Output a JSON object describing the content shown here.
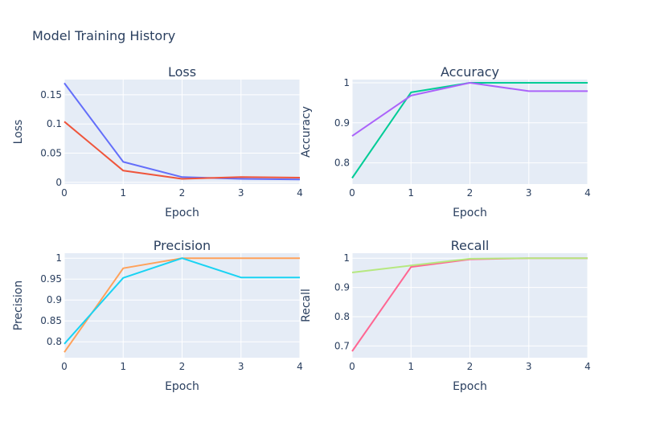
{
  "title": "Model Training History",
  "colors": {
    "plot_bg": "#E5ECF6",
    "grid": "#ffffff",
    "text": "#2a3f5f"
  },
  "chart_data": [
    {
      "type": "line",
      "title": "Loss",
      "xlabel": "Epoch",
      "ylabel": "Loss",
      "x": [
        0,
        1,
        2,
        3,
        4
      ],
      "xlim": [
        0,
        4
      ],
      "ylim": [
        -0.003,
        0.176
      ],
      "xticks": [
        0,
        1,
        2,
        3,
        4
      ],
      "yticks": [
        0,
        0.05,
        0.1,
        0.15
      ],
      "ytick_labels": [
        "0",
        "0.05",
        "0.1",
        "0.15"
      ],
      "grid": true,
      "series": [
        {
          "color": "#636EFA",
          "values": [
            0.17,
            0.035,
            0.009,
            0.006,
            0.005
          ]
        },
        {
          "color": "#EF553B",
          "values": [
            0.104,
            0.02,
            0.006,
            0.009,
            0.008
          ]
        }
      ]
    },
    {
      "type": "line",
      "title": "Accuracy",
      "xlabel": "Epoch",
      "ylabel": "Accuracy",
      "x": [
        0,
        1,
        2,
        3,
        4
      ],
      "xlim": [
        0,
        4
      ],
      "ylim": [
        0.747,
        1.008
      ],
      "xticks": [
        0,
        1,
        2,
        3,
        4
      ],
      "yticks": [
        0.8,
        0.9,
        1
      ],
      "ytick_labels": [
        "0.8",
        "0.9",
        "1"
      ],
      "grid": true,
      "series": [
        {
          "color": "#00CC96",
          "values": [
            0.762,
            0.976,
            1.0,
            1.0,
            1.0
          ]
        },
        {
          "color": "#AB63FA",
          "values": [
            0.867,
            0.968,
            1.0,
            0.979,
            0.979
          ]
        }
      ]
    },
    {
      "type": "line",
      "title": "Precision",
      "xlabel": "Epoch",
      "ylabel": "Precision",
      "x": [
        0,
        1,
        2,
        3,
        4
      ],
      "xlim": [
        0,
        4
      ],
      "ylim": [
        0.762,
        1.012
      ],
      "xticks": [
        0,
        1,
        2,
        3,
        4
      ],
      "yticks": [
        0.8,
        0.85,
        0.9,
        0.95,
        1
      ],
      "ytick_labels": [
        "0.8",
        "0.85",
        "0.9",
        "0.95",
        "1"
      ],
      "grid": true,
      "series": [
        {
          "color": "#FFA15A",
          "values": [
            0.775,
            0.976,
            1.0,
            1.0,
            1.0
          ]
        },
        {
          "color": "#19D3F3",
          "values": [
            0.795,
            0.953,
            1.0,
            0.954,
            0.954
          ]
        }
      ]
    },
    {
      "type": "line",
      "title": "Recall",
      "xlabel": "Epoch",
      "ylabel": "Recall",
      "x": [
        0,
        1,
        2,
        3,
        4
      ],
      "xlim": [
        0,
        4
      ],
      "ylim": [
        0.66,
        1.017
      ],
      "xticks": [
        0,
        1,
        2,
        3,
        4
      ],
      "yticks": [
        0.7,
        0.8,
        0.9,
        1
      ],
      "ytick_labels": [
        "0.7",
        "0.8",
        "0.9",
        "1"
      ],
      "grid": true,
      "series": [
        {
          "color": "#FF6692",
          "values": [
            0.682,
            0.97,
            0.996,
            1.0,
            1.0
          ]
        },
        {
          "color": "#B6E880",
          "values": [
            0.951,
            0.975,
            0.998,
            1.0,
            1.0
          ]
        }
      ]
    }
  ]
}
